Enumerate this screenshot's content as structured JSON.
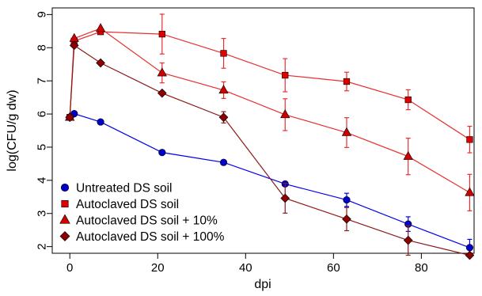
{
  "chart_data": {
    "type": "line",
    "xlabel": "dpi",
    "ylabel": "log(CFU/g dw)",
    "xlim": [
      -4,
      92
    ],
    "ylim": [
      1.8,
      9.2
    ],
    "x_ticks": [
      0,
      20,
      40,
      60,
      80
    ],
    "y_ticks": [
      2,
      3,
      4,
      5,
      6,
      7,
      8,
      9
    ],
    "legend_position": "bottom-left",
    "series": [
      {
        "name": "Untreated DS soil",
        "color": "#0000ee",
        "marker_color": "#0000cc",
        "marker": "circle",
        "points": [
          {
            "x": 0,
            "y": 5.9
          },
          {
            "x": 1,
            "y": 6.01
          },
          {
            "x": 7,
            "y": 5.76
          },
          {
            "x": 21,
            "y": 4.84
          },
          {
            "x": 35,
            "y": 4.54
          },
          {
            "x": 49,
            "y": 3.89
          },
          {
            "x": 63,
            "y": 3.41,
            "err": 0.2
          },
          {
            "x": 77,
            "y": 2.68,
            "err": 0.22
          },
          {
            "x": 91,
            "y": 1.97,
            "err": 0.25
          }
        ]
      },
      {
        "name": "Autoclaved DS soil",
        "color": "#e83030",
        "marker_color": "#e00000",
        "marker": "square",
        "points": [
          {
            "x": 0,
            "y": 5.9
          },
          {
            "x": 1,
            "y": 8.2
          },
          {
            "x": 7,
            "y": 8.48
          },
          {
            "x": 21,
            "y": 8.41,
            "err": 0.6
          },
          {
            "x": 35,
            "y": 7.83,
            "err": 0.45
          },
          {
            "x": 49,
            "y": 7.17,
            "err": 0.5
          },
          {
            "x": 63,
            "y": 6.98,
            "err": 0.28
          },
          {
            "x": 77,
            "y": 6.43,
            "err": 0.3
          },
          {
            "x": 91,
            "y": 5.23,
            "err": 0.4
          }
        ]
      },
      {
        "name": "Autoclaved DS soil + 10%",
        "color": "#e83030",
        "marker_color": "#d00000",
        "marker": "triangle",
        "points": [
          {
            "x": 0,
            "y": 5.9
          },
          {
            "x": 1,
            "y": 8.28
          },
          {
            "x": 7,
            "y": 8.58
          },
          {
            "x": 21,
            "y": 7.24,
            "err": 0.3
          },
          {
            "x": 35,
            "y": 6.72,
            "err": 0.25
          },
          {
            "x": 49,
            "y": 5.98,
            "err": 0.48
          },
          {
            "x": 63,
            "y": 5.44,
            "err": 0.45
          },
          {
            "x": 77,
            "y": 4.72,
            "err": 0.55
          },
          {
            "x": 91,
            "y": 3.63,
            "err": 0.55
          }
        ]
      },
      {
        "name": "Autoclaved DS soil + 100%",
        "color": "#8b1a1a",
        "marker_color": "#8b0000",
        "marker": "diamond",
        "points": [
          {
            "x": 0,
            "y": 5.9
          },
          {
            "x": 1,
            "y": 8.07
          },
          {
            "x": 7,
            "y": 7.54
          },
          {
            "x": 21,
            "y": 6.63
          },
          {
            "x": 35,
            "y": 5.9,
            "err": 0.17
          },
          {
            "x": 49,
            "y": 3.46,
            "err": 0.45
          },
          {
            "x": 63,
            "y": 2.83,
            "err": 0.35
          },
          {
            "x": 77,
            "y": 2.19,
            "err": 0.45
          },
          {
            "x": 91,
            "y": 1.74,
            "err": 0.0
          }
        ]
      }
    ]
  }
}
